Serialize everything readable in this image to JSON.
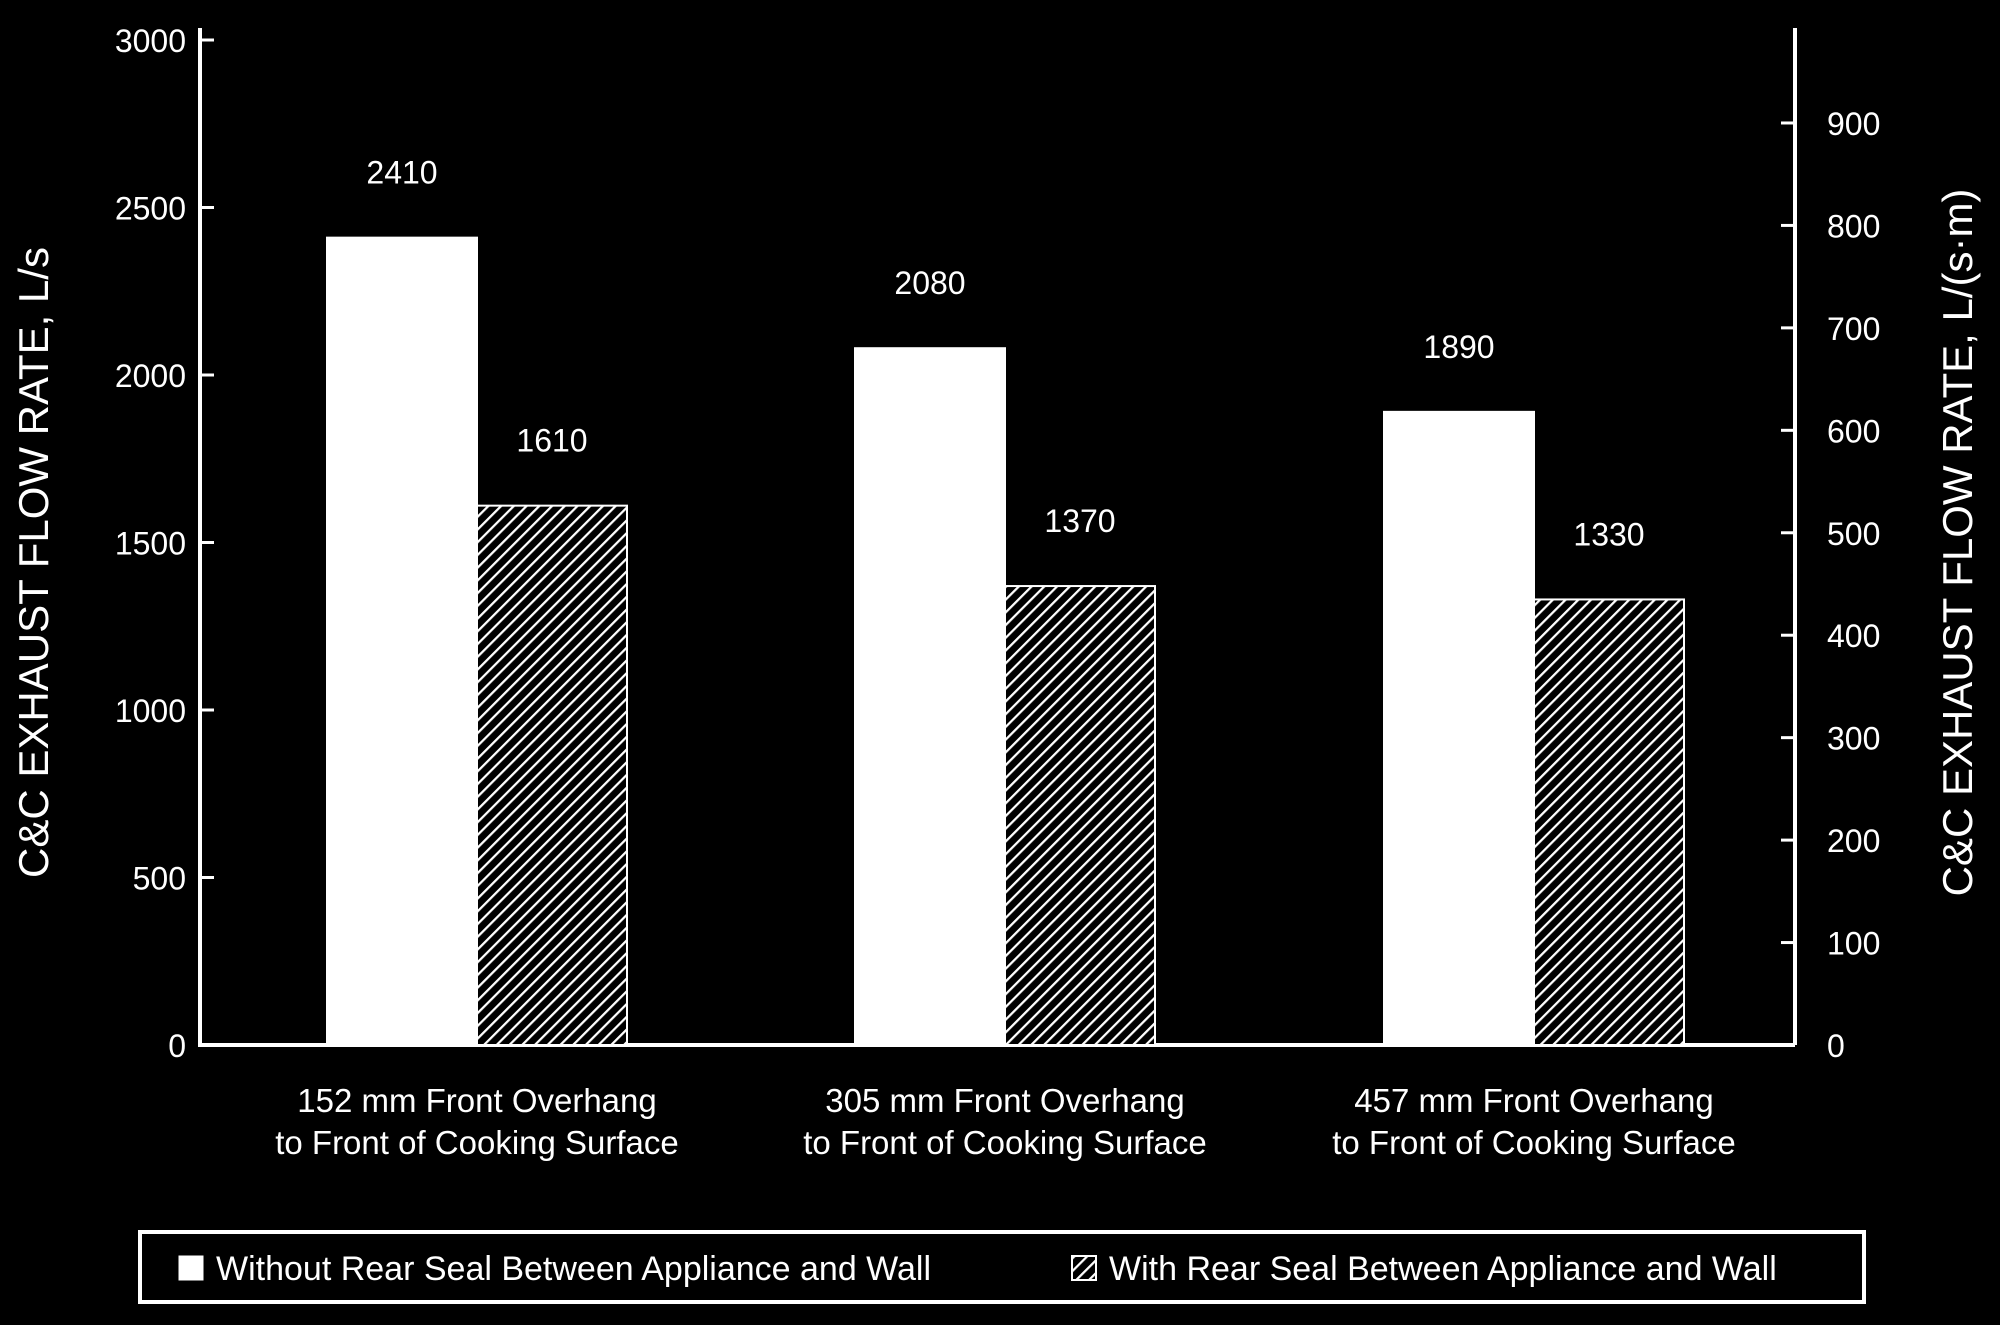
{
  "chart_data": {
    "type": "bar",
    "categories": [
      [
        "152 mm Front Overhang",
        "to Front of Cooking Surface"
      ],
      [
        "305 mm Front Overhang",
        "to Front of Cooking Surface"
      ],
      [
        "457 mm Front Overhang",
        "to Front of Cooking Surface"
      ]
    ],
    "series": [
      {
        "name": "Without Rear Seal Between Appliance and Wall",
        "values": [
          2410,
          2080,
          1890
        ],
        "fill": "solid",
        "color": "#ffffff"
      },
      {
        "name": "With Rear Seal Between Appliance and Wall",
        "values": [
          1610,
          1370,
          1330
        ],
        "fill": "hatched",
        "color": "#ffffff"
      }
    ],
    "ylabel": "C&C EXHAUST FLOW RATE, L/s",
    "ylim": [
      0,
      3000
    ],
    "yticks": [
      0,
      500,
      1000,
      1500,
      2000,
      2500,
      3000
    ],
    "y2label": "C&C EXHAUST FLOW RATE, L/(s·m)",
    "y2lim": [
      0,
      981
    ],
    "y2ticks": [
      0,
      100,
      200,
      300,
      400,
      500,
      600,
      700,
      800,
      900
    ],
    "grid": false,
    "legend_position": "bottom",
    "background": "#000000",
    "foreground": "#ffffff"
  }
}
